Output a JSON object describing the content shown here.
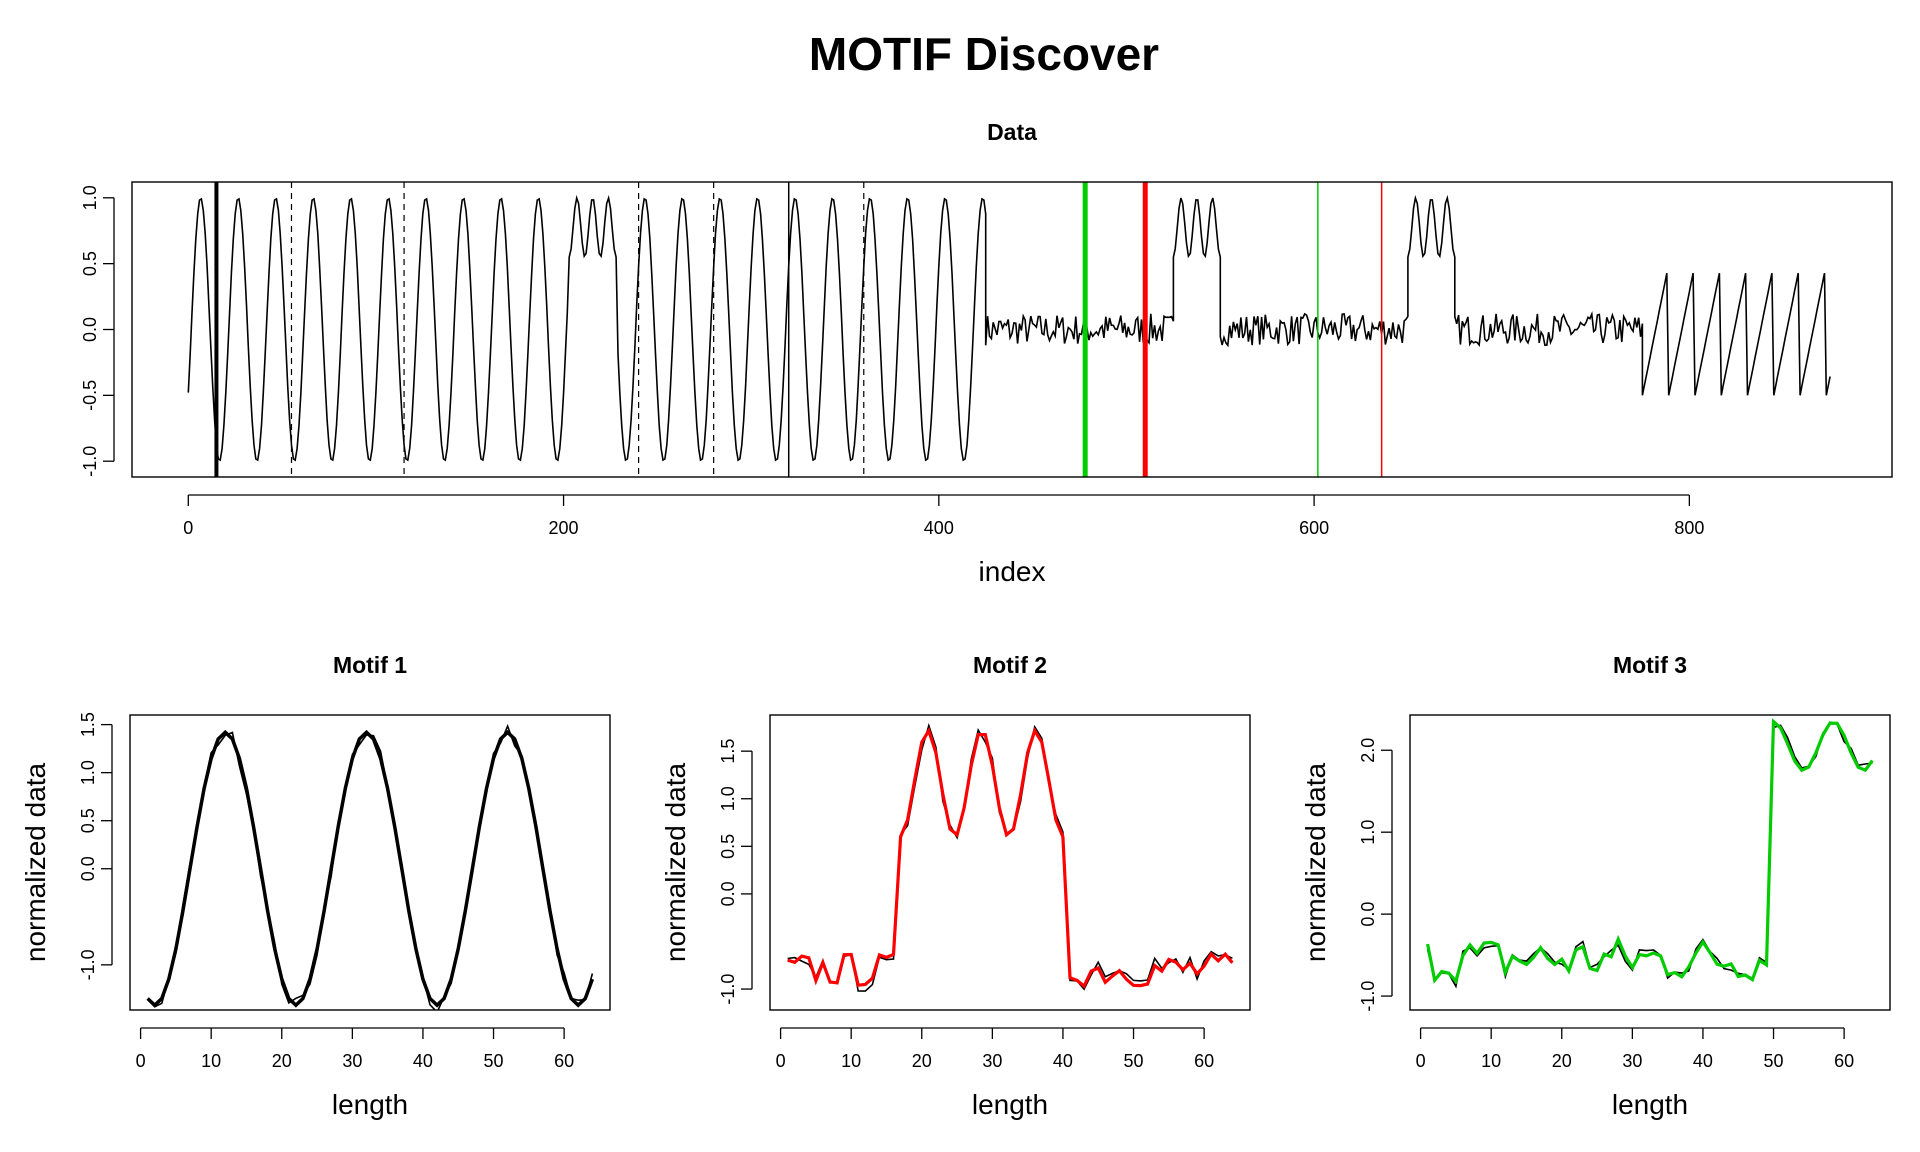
{
  "figure": {
    "title": "MOTIF Discover"
  },
  "chart_data": [
    {
      "id": "data",
      "type": "line",
      "title": "Data",
      "xlabel": "index",
      "ylabel": "",
      "xlim": [
        -30,
        908
      ],
      "ylim": [
        -1.12,
        1.12
      ],
      "xticks": [
        0,
        200,
        400,
        600,
        800
      ],
      "yticks": [
        -1.0,
        -0.5,
        0.0,
        0.5,
        1.0
      ],
      "ytick_labels": [
        "-1.0",
        "-0.5",
        "0.0",
        "0.5",
        "1.0"
      ],
      "grid": false,
      "segments": [
        {
          "kind": "sine",
          "from": 0,
          "to": 228,
          "period": 20,
          "amp": 1.0,
          "phase": -0.5
        },
        {
          "kind": "bump3",
          "from": 203,
          "to": 228,
          "base": 0.55,
          "peak": 1.0
        },
        {
          "kind": "sine",
          "from": 228,
          "to": 425,
          "period": 20,
          "amp": 1.0,
          "phase": 0.5
        },
        {
          "kind": "noise",
          "from": 425,
          "to": 525,
          "level": 0.0,
          "amp": 0.12
        },
        {
          "kind": "bump3",
          "from": 525,
          "to": 550,
          "base": 0.55,
          "peak": 1.0
        },
        {
          "kind": "noise",
          "from": 550,
          "to": 650,
          "level": 0.0,
          "amp": 0.12
        },
        {
          "kind": "bump3",
          "from": 650,
          "to": 675,
          "base": 0.55,
          "peak": 1.0
        },
        {
          "kind": "noise",
          "from": 675,
          "to": 775,
          "level": 0.0,
          "amp": 0.12
        },
        {
          "kind": "saw",
          "from": 775,
          "to": 875,
          "period": 14,
          "low": -0.5,
          "high": 0.5
        }
      ],
      "vlines": [
        {
          "x": 15,
          "color": "#000000",
          "width": 4,
          "dash": "solid"
        },
        {
          "x": 55,
          "color": "#000000",
          "width": 1.2,
          "dash": "dashed"
        },
        {
          "x": 115,
          "color": "#000000",
          "width": 1.2,
          "dash": "dashed"
        },
        {
          "x": 240,
          "color": "#000000",
          "width": 1.2,
          "dash": "dashed"
        },
        {
          "x": 280,
          "color": "#000000",
          "width": 1.2,
          "dash": "dashed"
        },
        {
          "x": 320,
          "color": "#000000",
          "width": 1.5,
          "dash": "solid"
        },
        {
          "x": 360,
          "color": "#000000",
          "width": 1.2,
          "dash": "dashed"
        },
        {
          "x": 478,
          "color": "#00cc00",
          "width": 5,
          "dash": "solid"
        },
        {
          "x": 510,
          "color": "#ff0000",
          "width": 5,
          "dash": "solid"
        },
        {
          "x": 602,
          "color": "#00cc00",
          "width": 1.5,
          "dash": "solid"
        },
        {
          "x": 636,
          "color": "#ff0000",
          "width": 1.5,
          "dash": "solid"
        }
      ]
    },
    {
      "id": "motif1",
      "type": "line",
      "title": "Motif 1",
      "xlabel": "length",
      "ylabel": "normalized data",
      "xlim": [
        -1.5,
        66.5
      ],
      "ylim": [
        -1.47,
        1.6
      ],
      "xticks": [
        0,
        10,
        20,
        30,
        40,
        50,
        60
      ],
      "yticks": [
        -1.0,
        0.0,
        0.5,
        1.0,
        1.5
      ],
      "ytick_labels": [
        "-1.0",
        "0.0",
        "0.5",
        "1.0",
        "1.5"
      ],
      "grid": false,
      "color": "#000000",
      "shape": {
        "kind": "sine",
        "n": 64,
        "period": 20,
        "amp": 1.42,
        "peak_at": 12
      }
    },
    {
      "id": "motif2",
      "type": "line",
      "title": "Motif 2",
      "xlabel": "length",
      "ylabel": "normalized data",
      "xlim": [
        -1.5,
        66.5
      ],
      "ylim": [
        -1.22,
        1.88
      ],
      "xticks": [
        0,
        10,
        20,
        30,
        40,
        50,
        60
      ],
      "yticks": [
        -1.0,
        0.0,
        0.5,
        1.0,
        1.5
      ],
      "ytick_labels": [
        "-1.0",
        "0.0",
        "0.5",
        "1.0",
        "1.5"
      ],
      "grid": false,
      "color": "#ff0000",
      "shape": {
        "kind": "bump3",
        "n": 64,
        "start": 17,
        "end": 40,
        "low": -0.8,
        "base": 0.6,
        "peak": 1.72
      }
    },
    {
      "id": "motif3",
      "type": "line",
      "title": "Motif 3",
      "xlabel": "length",
      "ylabel": "normalized data",
      "xlim": [
        -1.5,
        66.5
      ],
      "ylim": [
        -1.17,
        2.43
      ],
      "xticks": [
        0,
        10,
        20,
        30,
        40,
        50,
        60
      ],
      "yticks": [
        -1.0,
        0.0,
        1.0,
        2.0
      ],
      "ytick_labels": [
        "-1.0",
        "0.0",
        "1.0",
        "2.0"
      ],
      "grid": false,
      "color": "#00cc00",
      "shape": {
        "kind": "step",
        "n": 64,
        "start": 50,
        "low": -0.55,
        "high": 2.05
      }
    }
  ]
}
